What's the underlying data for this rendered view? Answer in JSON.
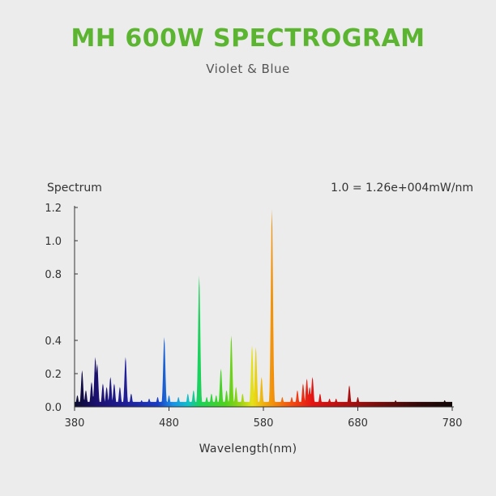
{
  "title": "MH 600W SPECTROGRAM",
  "subtitle": "Violet & Blue",
  "colors": {
    "title": "#5cb531",
    "background": "#ececec"
  },
  "chart_data": {
    "type": "area",
    "ylabel": "Spectrum",
    "xlabel": "Wavelength(nm)",
    "unit_note": "1.0 = 1.26e+004mW/nm",
    "xlim": [
      380,
      780
    ],
    "ylim": [
      0,
      1.2
    ],
    "x_ticks": [
      380,
      480,
      580,
      680,
      780
    ],
    "y_ticks": [
      {
        "v": 0,
        "label": "0.0"
      },
      {
        "v": 0.2,
        "label": "0.2"
      },
      {
        "v": 0.4,
        "label": "0.4"
      },
      {
        "v": 0.8,
        "label": "0.8"
      },
      {
        "v": 1.0,
        "label": "1.0"
      },
      {
        "v": 1.2,
        "label": "1.2"
      }
    ],
    "baseline": 0.03,
    "peaks": [
      {
        "x": 383,
        "y": 0.07
      },
      {
        "x": 388,
        "y": 0.22
      },
      {
        "x": 392,
        "y": 0.1
      },
      {
        "x": 398,
        "y": 0.15
      },
      {
        "x": 402,
        "y": 0.3
      },
      {
        "x": 404,
        "y": 0.26
      },
      {
        "x": 410,
        "y": 0.14
      },
      {
        "x": 414,
        "y": 0.12
      },
      {
        "x": 418,
        "y": 0.18
      },
      {
        "x": 422,
        "y": 0.14
      },
      {
        "x": 428,
        "y": 0.12
      },
      {
        "x": 434,
        "y": 0.3
      },
      {
        "x": 440,
        "y": 0.08
      },
      {
        "x": 451,
        "y": 0.04
      },
      {
        "x": 459,
        "y": 0.05
      },
      {
        "x": 468,
        "y": 0.06
      },
      {
        "x": 475,
        "y": 0.42
      },
      {
        "x": 480,
        "y": 0.07
      },
      {
        "x": 490,
        "y": 0.06
      },
      {
        "x": 500,
        "y": 0.08
      },
      {
        "x": 506,
        "y": 0.1
      },
      {
        "x": 512,
        "y": 0.79
      },
      {
        "x": 520,
        "y": 0.06
      },
      {
        "x": 525,
        "y": 0.08
      },
      {
        "x": 530,
        "y": 0.07
      },
      {
        "x": 535,
        "y": 0.23
      },
      {
        "x": 541,
        "y": 0.1
      },
      {
        "x": 546,
        "y": 0.43
      },
      {
        "x": 551,
        "y": 0.12
      },
      {
        "x": 558,
        "y": 0.08
      },
      {
        "x": 568,
        "y": 0.37
      },
      {
        "x": 572,
        "y": 0.36
      },
      {
        "x": 578,
        "y": 0.18
      },
      {
        "x": 589,
        "y": 1.19
      },
      {
        "x": 600,
        "y": 0.06
      },
      {
        "x": 610,
        "y": 0.06
      },
      {
        "x": 616,
        "y": 0.1
      },
      {
        "x": 622,
        "y": 0.14
      },
      {
        "x": 626,
        "y": 0.17
      },
      {
        "x": 629,
        "y": 0.12
      },
      {
        "x": 632,
        "y": 0.18
      },
      {
        "x": 640,
        "y": 0.08
      },
      {
        "x": 650,
        "y": 0.05
      },
      {
        "x": 657,
        "y": 0.05
      },
      {
        "x": 671,
        "y": 0.13
      },
      {
        "x": 680,
        "y": 0.06
      },
      {
        "x": 700,
        "y": 0.03
      },
      {
        "x": 720,
        "y": 0.04
      },
      {
        "x": 745,
        "y": 0.03
      },
      {
        "x": 760,
        "y": 0.03
      },
      {
        "x": 772,
        "y": 0.04
      }
    ]
  }
}
